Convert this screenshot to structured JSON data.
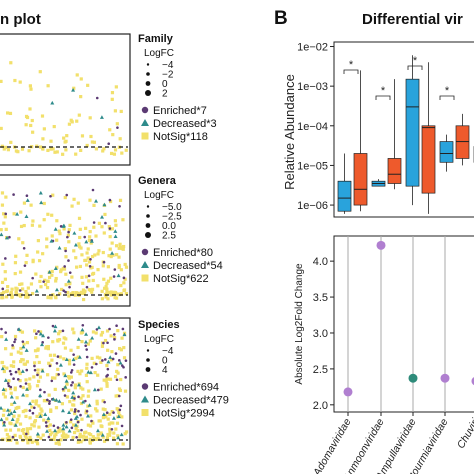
{
  "panel_a": {
    "title": "n plot",
    "subpanels": [
      {
        "level": "Family",
        "logfc_label": "LogFC",
        "logfc_ticks": [
          "−4",
          "−2",
          "0",
          "2"
        ],
        "legend": [
          {
            "label": "Enriched*7",
            "shape": "circle",
            "color": "#5b3a73"
          },
          {
            "label": "Decreased*3",
            "shape": "triangle",
            "color": "#2e8b8b"
          },
          {
            "label": "NotSig*118",
            "shape": "square",
            "color": "#f2e06b"
          }
        ],
        "threshold_line": "dashed"
      },
      {
        "level": "Genera",
        "logfc_label": "LogFC",
        "logfc_ticks": [
          "−5.0",
          "−2.5",
          "0.0",
          "2.5"
        ],
        "legend": [
          {
            "label": "Enriched*80",
            "shape": "circle",
            "color": "#5b3a73"
          },
          {
            "label": "Decreased*54",
            "shape": "triangle",
            "color": "#2e8b8b"
          },
          {
            "label": "NotSig*622",
            "shape": "square",
            "color": "#f2e06b"
          }
        ],
        "threshold_line": "dashed"
      },
      {
        "level": "Species",
        "logfc_label": "LogFC",
        "logfc_ticks": [
          "−4",
          "0",
          "4"
        ],
        "legend": [
          {
            "label": "Enriched*694",
            "shape": "circle",
            "color": "#5b3a73"
          },
          {
            "label": "Decreased*479",
            "shape": "triangle",
            "color": "#2e8b8b"
          },
          {
            "label": "NotSig*2994",
            "shape": "square",
            "color": "#f2e06b"
          }
        ],
        "threshold_line": "dashed"
      }
    ]
  },
  "panel_b": {
    "letter": "B",
    "title": "Differential vir",
    "colors": {
      "group1": "#29a3dc",
      "group2": "#ee5a2c"
    },
    "boxplot": {
      "ylabel": "Relative Abundance",
      "y_ticks": [
        "1e−02",
        "1e−03",
        "1e−04",
        "1e−05",
        "1e−06"
      ],
      "significance_marks": [
        "*",
        "*",
        "*",
        "*"
      ]
    },
    "dotplot": {
      "ylabel": "Absolute Log2Fold Change",
      "y_ticks": [
        "4.0",
        "3.5",
        "3.0",
        "2.5",
        "2.0"
      ],
      "categories": [
        "Adomaviridae",
        "Anmoonviridae",
        "Ampullaviridae",
        "Botourmiaviridae",
        "Chuviri"
      ]
    }
  },
  "chart_data": [
    {
      "type": "scatter",
      "title": "Family",
      "series": [
        {
          "name": "Enriched*7",
          "count": 7
        },
        {
          "name": "Decreased*3",
          "count": 3
        },
        {
          "name": "NotSig*118",
          "count": 118
        }
      ]
    },
    {
      "type": "scatter",
      "title": "Genera",
      "series": [
        {
          "name": "Enriched*80",
          "count": 80
        },
        {
          "name": "Decreased*54",
          "count": 54
        },
        {
          "name": "NotSig*622",
          "count": 622
        }
      ]
    },
    {
      "type": "scatter",
      "title": "Species",
      "series": [
        {
          "name": "Enriched*694",
          "count": 694
        },
        {
          "name": "Decreased*479",
          "count": 479
        },
        {
          "name": "NotSig*2994",
          "count": 2994
        }
      ]
    },
    {
      "type": "box",
      "ylabel": "Relative Abundance",
      "y_scale": "log10",
      "ylim": [
        5e-07,
        0.013
      ],
      "groups": [
        {
          "q1": 7e-07,
          "median": 1.5e-06,
          "q3": 4e-06,
          "whisker_low": 6e-07,
          "whisker_high": 2e-05,
          "color": "group1"
        },
        {
          "q1": 1e-06,
          "median": 2.5e-06,
          "q3": 2e-05,
          "whisker_low": 7e-07,
          "whisker_high": 0.0025,
          "color": "group2"
        },
        {
          "q1": 3e-06,
          "median": 3.5e-06,
          "q3": 4e-06,
          "whisker_low": 3e-06,
          "whisker_high": 4.5e-06,
          "color": "group1"
        },
        {
          "q1": 3.5e-06,
          "median": 6e-06,
          "q3": 1.5e-05,
          "whisker_low": 2.5e-06,
          "whisker_high": 0.0015,
          "color": "group2"
        },
        {
          "q1": 3e-06,
          "median": 0.0003,
          "q3": 0.0015,
          "whisker_low": 1e-06,
          "whisker_high": 0.006,
          "color": "group1"
        },
        {
          "q1": 2e-06,
          "median": 9e-05,
          "q3": 0.0001,
          "whisker_low": 6e-07,
          "whisker_high": 0.004,
          "color": "group2"
        },
        {
          "q1": 1.2e-05,
          "median": 2e-05,
          "q3": 4e-05,
          "whisker_low": 7e-06,
          "whisker_high": 6e-05,
          "color": "group1"
        },
        {
          "q1": 1.5e-05,
          "median": 4e-05,
          "q3": 0.0001,
          "whisker_low": 1e-05,
          "whisker_high": 0.0002,
          "color": "group2"
        },
        {
          "q1": 1.2e-05,
          "median": 1.8e-05,
          "q3": 3e-05,
          "whisker_low": 1.1e-06,
          "whisker_high": 6e-05,
          "color": "group1"
        }
      ]
    },
    {
      "type": "scatter",
      "ylabel": "Absolute Log2Fold Change",
      "ylim": [
        1.9,
        4.35
      ],
      "categories": [
        "Adomaviridae",
        "Anmoonviridae",
        "Ampullaviridae",
        "Botourmiaviridae",
        "Chuviri"
      ],
      "points": [
        {
          "category": "Adomaviridae",
          "y": 2.18,
          "color": "#b07fd0"
        },
        {
          "category": "Anmoonviridae",
          "y": 4.22,
          "color": "#b07fd0"
        },
        {
          "category": "Ampullaviridae",
          "y": 2.37,
          "color": "#2e8b7a"
        },
        {
          "category": "Botourmiaviridae",
          "y": 2.37,
          "color": "#b07fd0"
        },
        {
          "category": "Chuviri",
          "y": 2.33,
          "color": "#b07fd0"
        }
      ]
    }
  ]
}
